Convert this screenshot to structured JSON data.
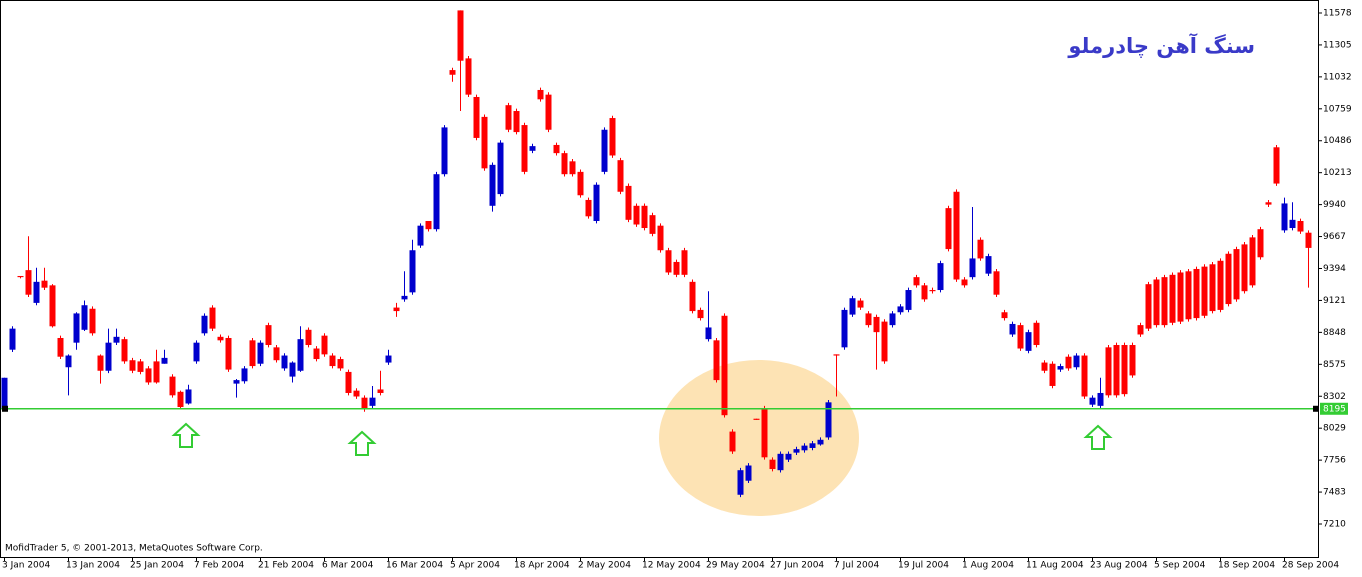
{
  "chart_data": {
    "type": "candlestick",
    "title": "سنگ آهن چادرملو",
    "footer": "MofidTrader 5, © 2001-2013, MetaQuotes Software Corp.",
    "up_color": "#0000cd",
    "down_color": "#ff0000",
    "ylim": [
      6928,
      11689
    ],
    "yticks": [
      11578,
      11305,
      11032,
      10759,
      10486,
      10213,
      9940,
      9667,
      9394,
      9121,
      8848,
      8575,
      8302,
      8029,
      7756,
      7483,
      7210
    ],
    "price_line": {
      "value": 8195,
      "color": "#33cc33"
    },
    "categories": [
      "3 Jan 2004",
      null,
      null,
      null,
      null,
      null,
      null,
      null,
      "13 Jan 2004",
      null,
      null,
      null,
      null,
      null,
      null,
      null,
      "25 Jan 2004",
      null,
      null,
      null,
      null,
      null,
      null,
      null,
      "7 Feb 2004",
      null,
      null,
      null,
      null,
      null,
      null,
      null,
      "21 Feb 2004",
      null,
      null,
      null,
      null,
      null,
      null,
      null,
      "6 Mar 2004",
      null,
      null,
      null,
      null,
      null,
      null,
      null,
      "16 Mar 2004",
      null,
      null,
      null,
      null,
      null,
      null,
      null,
      "5 Apr 2004",
      null,
      null,
      null,
      null,
      null,
      null,
      null,
      "18 Apr 2004",
      null,
      null,
      null,
      null,
      null,
      null,
      null,
      "2 May 2004",
      null,
      null,
      null,
      null,
      null,
      null,
      null,
      "12 May 2004",
      null,
      null,
      null,
      null,
      null,
      null,
      null,
      "29 May 2004",
      null,
      null,
      null,
      null,
      null,
      null,
      null,
      "27 Jun 2004",
      null,
      null,
      null,
      null,
      null,
      null,
      null,
      "7 Jul 2004",
      null,
      null,
      null,
      null,
      null,
      null,
      null,
      "19 Jul 2004",
      null,
      null,
      null,
      null,
      null,
      null,
      null,
      "1 Aug 2004",
      null,
      null,
      null,
      null,
      null,
      null,
      null,
      "11 Aug 2004",
      null,
      null,
      null,
      null,
      null,
      null,
      null,
      "23 Aug 2004",
      null,
      null,
      null,
      null,
      null,
      null,
      null,
      "5 Sep 2004",
      null,
      null,
      null,
      null,
      null,
      null,
      null,
      "18 Sep 2004",
      null,
      null,
      null,
      null,
      null,
      null,
      null,
      "28 Sep 2004",
      null,
      null,
      null
    ],
    "ohlc": [
      [
        8190,
        8460,
        8190,
        8460
      ],
      [
        8700,
        8900,
        8680,
        8880
      ],
      [
        9330,
        9330,
        9310,
        9320
      ],
      [
        9380,
        9670,
        9150,
        9170
      ],
      [
        9100,
        9400,
        9080,
        9280
      ],
      [
        9290,
        9400,
        9210,
        9230
      ],
      [
        9250,
        9260,
        8890,
        8900
      ],
      [
        8800,
        8820,
        8620,
        8640
      ],
      [
        8550,
        8660,
        8310,
        8650
      ],
      [
        8760,
        9020,
        8700,
        9010
      ],
      [
        8870,
        9120,
        8860,
        9080
      ],
      [
        9050,
        9070,
        8820,
        8840
      ],
      [
        8650,
        8660,
        8410,
        8520
      ],
      [
        8520,
        8880,
        8500,
        8760
      ],
      [
        8760,
        8880,
        8740,
        8810
      ],
      [
        8790,
        8810,
        8580,
        8600
      ],
      [
        8610,
        8630,
        8500,
        8520
      ],
      [
        8600,
        8620,
        8490,
        8510
      ],
      [
        8540,
        8560,
        8400,
        8420
      ],
      [
        8600,
        8700,
        8410,
        8420
      ],
      [
        8580,
        8700,
        8580,
        8630
      ],
      [
        8470,
        8490,
        8290,
        8310
      ],
      [
        8340,
        8350,
        8190,
        8210
      ],
      [
        8240,
        8400,
        8230,
        8360
      ],
      [
        8600,
        8780,
        8580,
        8760
      ],
      [
        8840,
        9010,
        8820,
        8990
      ],
      [
        9060,
        9080,
        8860,
        8880
      ],
      [
        8810,
        8830,
        8760,
        8780
      ],
      [
        8800,
        8820,
        8510,
        8530
      ],
      [
        8410,
        8450,
        8290,
        8440
      ],
      [
        8430,
        8560,
        8410,
        8540
      ],
      [
        8780,
        8800,
        8540,
        8560
      ],
      [
        8580,
        8780,
        8560,
        8760
      ],
      [
        8910,
        8930,
        8720,
        8740
      ],
      [
        8720,
        8740,
        8590,
        8610
      ],
      [
        8540,
        8670,
        8520,
        8650
      ],
      [
        8470,
        8600,
        8420,
        8590
      ],
      [
        8520,
        8900,
        8510,
        8790
      ],
      [
        8870,
        8890,
        8720,
        8740
      ],
      [
        8710,
        8730,
        8600,
        8620
      ],
      [
        8820,
        8840,
        8640,
        8660
      ],
      [
        8650,
        8670,
        8540,
        8560
      ],
      [
        8620,
        8640,
        8520,
        8540
      ],
      [
        8510,
        8530,
        8310,
        8330
      ],
      [
        8350,
        8370,
        8280,
        8300
      ],
      [
        8290,
        8310,
        8170,
        8190
      ],
      [
        8220,
        8390,
        8200,
        8290
      ],
      [
        8360,
        8520,
        8310,
        8330
      ],
      [
        8590,
        8700,
        8570,
        8650
      ],
      [
        9060,
        9100,
        8980,
        9030
      ],
      [
        9130,
        9370,
        9110,
        9160
      ],
      [
        9190,
        9640,
        9170,
        9550
      ],
      [
        9590,
        9780,
        9570,
        9760
      ],
      [
        9800,
        9800,
        9710,
        9730
      ],
      [
        9730,
        10220,
        9710,
        10200
      ],
      [
        10200,
        10620,
        10180,
        10600
      ],
      [
        11090,
        11110,
        10990,
        11050
      ],
      [
        11600,
        11600,
        10740,
        11170
      ],
      [
        11190,
        11210,
        10860,
        10880
      ],
      [
        10860,
        10880,
        10490,
        10510
      ],
      [
        10690,
        10710,
        10230,
        10250
      ],
      [
        9930,
        10300,
        9880,
        10280
      ],
      [
        10030,
        10490,
        10010,
        10470
      ],
      [
        10790,
        10810,
        10560,
        10580
      ],
      [
        10740,
        10760,
        10540,
        10560
      ],
      [
        10620,
        10640,
        10200,
        10220
      ],
      [
        10400,
        10460,
        10380,
        10440
      ],
      [
        10920,
        10940,
        10820,
        10840
      ],
      [
        10880,
        10900,
        10560,
        10580
      ],
      [
        10450,
        10470,
        10360,
        10380
      ],
      [
        10380,
        10400,
        10180,
        10200
      ],
      [
        10310,
        10330,
        10180,
        10200
      ],
      [
        10220,
        10240,
        10000,
        10020
      ],
      [
        9980,
        10000,
        9820,
        9840
      ],
      [
        9800,
        10130,
        9780,
        10110
      ],
      [
        10220,
        10600,
        10200,
        10580
      ],
      [
        10680,
        10700,
        10340,
        10360
      ],
      [
        10320,
        10340,
        10030,
        10050
      ],
      [
        10100,
        10120,
        9790,
        9810
      ],
      [
        9930,
        9950,
        9750,
        9770
      ],
      [
        9930,
        9950,
        9720,
        9740
      ],
      [
        9850,
        9870,
        9670,
        9690
      ],
      [
        9760,
        9780,
        9530,
        9550
      ],
      [
        9550,
        9570,
        9340,
        9360
      ],
      [
        9450,
        9470,
        9320,
        9340
      ],
      [
        9550,
        9570,
        9320,
        9340
      ],
      [
        9280,
        9300,
        9010,
        9030
      ],
      [
        9040,
        9060,
        8950,
        8970
      ],
      [
        8790,
        9200,
        8770,
        8890
      ],
      [
        8780,
        8800,
        8420,
        8440
      ],
      [
        8990,
        9010,
        8120,
        8140
      ],
      [
        8000,
        8020,
        7810,
        7830
      ],
      [
        7460,
        7690,
        7440,
        7670
      ],
      [
        7580,
        7730,
        7560,
        7710
      ],
      [
        8110,
        8110,
        8100,
        8100
      ],
      [
        8200,
        8220,
        7760,
        7780
      ],
      [
        7760,
        7780,
        7660,
        7680
      ],
      [
        7670,
        7830,
        7650,
        7810
      ],
      [
        7760,
        7830,
        7740,
        7810
      ],
      [
        7820,
        7870,
        7800,
        7850
      ],
      [
        7840,
        7900,
        7820,
        7880
      ],
      [
        7860,
        7920,
        7840,
        7900
      ],
      [
        7890,
        7950,
        7880,
        7930
      ],
      [
        7950,
        8270,
        7930,
        8250
      ],
      [
        8660,
        8660,
        8300,
        8650
      ],
      [
        8720,
        9060,
        8700,
        9040
      ],
      [
        9000,
        9160,
        8980,
        9140
      ],
      [
        9120,
        9140,
        9040,
        9060
      ],
      [
        9010,
        9030,
        8890,
        8910
      ],
      [
        8980,
        9000,
        8530,
        8850
      ],
      [
        8940,
        8960,
        8580,
        8600
      ],
      [
        8910,
        9030,
        8890,
        9010
      ],
      [
        9020,
        9090,
        9000,
        9070
      ],
      [
        9040,
        9230,
        9020,
        9210
      ],
      [
        9320,
        9340,
        9230,
        9250
      ],
      [
        9250,
        9270,
        9110,
        9130
      ],
      [
        9210,
        9230,
        9180,
        9200
      ],
      [
        9210,
        9460,
        9190,
        9440
      ],
      [
        9910,
        9930,
        9540,
        9560
      ],
      [
        10050,
        10070,
        9280,
        9300
      ],
      [
        9300,
        9320,
        9230,
        9250
      ],
      [
        9320,
        9920,
        9300,
        9480
      ],
      [
        9640,
        9660,
        9460,
        9480
      ],
      [
        9350,
        9520,
        9330,
        9500
      ],
      [
        9370,
        9390,
        9150,
        9170
      ],
      [
        9020,
        9040,
        8950,
        8970
      ],
      [
        8830,
        8940,
        8810,
        8920
      ],
      [
        8910,
        8930,
        8690,
        8710
      ],
      [
        8690,
        8870,
        8670,
        8850
      ],
      [
        8930,
        8950,
        8720,
        8740
      ],
      [
        8590,
        8610,
        8500,
        8520
      ],
      [
        8580,
        8600,
        8370,
        8390
      ],
      [
        8530,
        8580,
        8510,
        8560
      ],
      [
        8640,
        8660,
        8520,
        8540
      ],
      [
        8550,
        8670,
        8530,
        8650
      ],
      [
        8650,
        8670,
        8280,
        8300
      ],
      [
        8230,
        8310,
        8210,
        8290
      ],
      [
        8220,
        8460,
        8200,
        8330
      ],
      [
        8720,
        8740,
        8290,
        8310
      ],
      [
        8740,
        8760,
        8290,
        8310
      ],
      [
        8740,
        8760,
        8300,
        8320
      ],
      [
        8740,
        8760,
        8460,
        8480
      ],
      [
        8910,
        8930,
        8810,
        8830
      ],
      [
        9260,
        9280,
        8860,
        8880
      ],
      [
        9300,
        9320,
        8890,
        8910
      ],
      [
        9320,
        9340,
        8890,
        8910
      ],
      [
        9340,
        9360,
        8910,
        8930
      ],
      [
        9360,
        9380,
        8920,
        8940
      ],
      [
        9370,
        9390,
        8940,
        8960
      ],
      [
        9390,
        9410,
        8950,
        8970
      ],
      [
        9410,
        9430,
        8970,
        8990
      ],
      [
        9430,
        9450,
        9010,
        9030
      ],
      [
        9460,
        9480,
        9020,
        9040
      ],
      [
        9520,
        9540,
        9070,
        9090
      ],
      [
        9560,
        9580,
        9110,
        9130
      ],
      [
        9600,
        9620,
        9180,
        9200
      ],
      [
        9660,
        9680,
        9230,
        9250
      ],
      [
        9730,
        9750,
        9470,
        9490
      ],
      [
        9960,
        9980,
        9920,
        9940
      ],
      [
        10430,
        10450,
        10100,
        10120
      ],
      [
        9720,
        10000,
        9700,
        9950
      ],
      [
        9740,
        9960,
        9720,
        9810
      ],
      [
        9800,
        9820,
        9690,
        9710
      ],
      [
        9700,
        9720,
        9230,
        9570
      ]
    ]
  }
}
